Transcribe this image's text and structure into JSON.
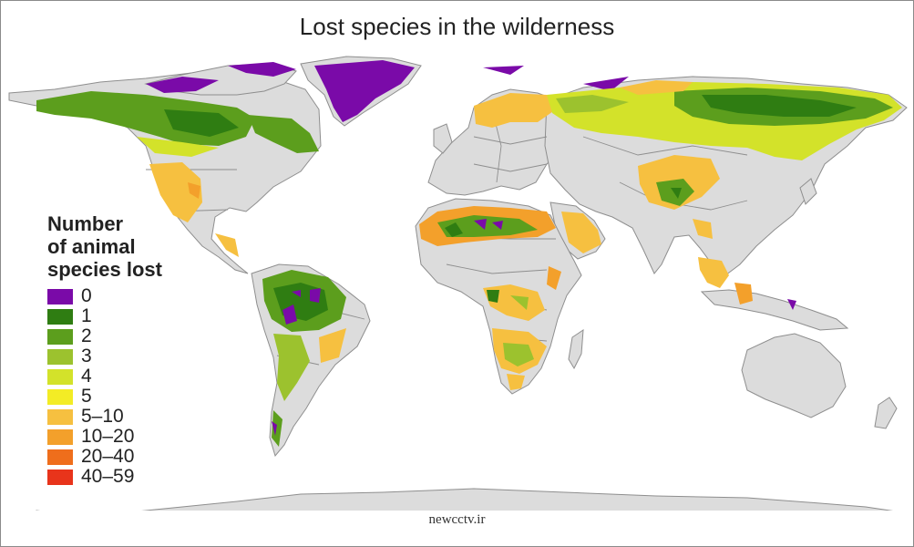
{
  "title": "Lost species in the wilderness",
  "legend": {
    "title_lines": [
      "Number",
      "of animal",
      "species lost"
    ],
    "items": [
      {
        "label": "0",
        "color": "#7a0aa8"
      },
      {
        "label": "1",
        "color": "#2f7d12"
      },
      {
        "label": "2",
        "color": "#5c9e1d"
      },
      {
        "label": "3",
        "color": "#9cc22e"
      },
      {
        "label": "4",
        "color": "#d3e22a"
      },
      {
        "label": "5",
        "color": "#f3ec25"
      },
      {
        "label": "5–10",
        "color": "#f6c040"
      },
      {
        "label": "10–20",
        "color": "#f3a02b"
      },
      {
        "label": "20–40",
        "color": "#ef6e1c"
      },
      {
        "label": "40–59",
        "color": "#e8341b"
      }
    ]
  },
  "map": {
    "land_color": "#dcdcdc",
    "border_color": "#8e8e8e"
  },
  "watermark": "newcctv.ir"
}
